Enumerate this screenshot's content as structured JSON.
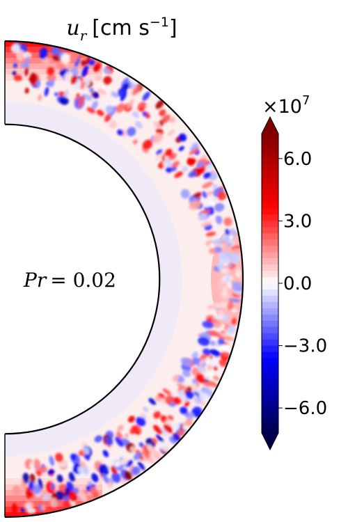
{
  "chart_data": {
    "type": "heatmap",
    "title_var": "u",
    "title_sub": "r",
    "title_units": "[cm s",
    "title_exp": "−1",
    "title_close": "]",
    "annotation_lhs": "Pr",
    "annotation_rhs": "= 0.02",
    "colorbar": {
      "multiplier_base": "×10",
      "multiplier_exp": "7",
      "range": [
        -7.2,
        7.2
      ],
      "ticks": [
        {
          "value": 6.0,
          "label": "6.0"
        },
        {
          "value": 3.0,
          "label": "3.0"
        },
        {
          "value": 0.0,
          "label": "0.0"
        },
        {
          "value": -3.0,
          "label": "−3.0"
        },
        {
          "value": -6.0,
          "label": "−6.0"
        }
      ],
      "extend": "both",
      "colormap": "seismic"
    },
    "domain": {
      "shape": "half-annulus",
      "theta_range_deg": [
        0,
        180
      ],
      "radius_ratio_inner_outer": 0.65
    }
  }
}
